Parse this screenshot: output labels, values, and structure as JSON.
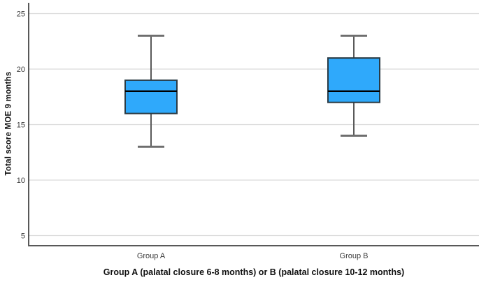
{
  "chart_data": {
    "type": "box",
    "title": "",
    "ylabel": "Total score MOE 9 months",
    "xlabel": "Group A (palatal closure 6-8 months) or B (palatal closure 10-12 months)",
    "categories": [
      "Group A",
      "Group B"
    ],
    "series": [
      {
        "name": "Group A",
        "min": 13,
        "q1": 16,
        "median": 18,
        "q3": 19,
        "max": 23
      },
      {
        "name": "Group B",
        "min": 14,
        "q1": 17,
        "median": 18,
        "q3": 21,
        "max": 23
      }
    ],
    "yticks": [
      5,
      10,
      15,
      20,
      25
    ],
    "ylim": [
      4.1,
      26.1
    ],
    "grid": "horizontal",
    "legend": "none",
    "colors": {
      "box_fill": "#2FA9FB",
      "box_border": "#2A3B45",
      "median": "#000000",
      "whisker": "#5A5A5A",
      "cap": "#6E6E6E",
      "gridline": "#D9D9D9",
      "y_axis": "#2E2E2E",
      "x_axis": "#595959",
      "tick_text": "#3C3C3C",
      "title_text": "#111111",
      "background": "#FFFFFF"
    }
  }
}
